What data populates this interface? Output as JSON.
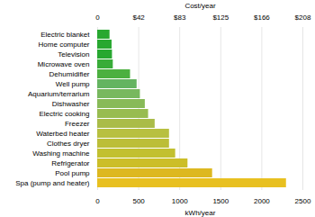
{
  "chart_data": {
    "type": "bar",
    "orientation": "horizontal",
    "categories": [
      "Spa (pump and heater)",
      "Pool pump",
      "Refrigerator",
      "Washing machine",
      "Clothes dryer",
      "Waterbed heater",
      "Freezer",
      "Electric cooking",
      "Dishwasher",
      "Aquarium/terrarium",
      "Well pump",
      "Dehumidifier",
      "Microwave oven",
      "Television",
      "Home computer",
      "Electric blanket"
    ],
    "values": [
      2300,
      1400,
      1100,
      950,
      875,
      875,
      700,
      620,
      580,
      520,
      480,
      400,
      190,
      180,
      175,
      150
    ],
    "colors": [
      "#E8C020",
      "#DDB820",
      "#CCBE28",
      "#C2C030",
      "#BCBE38",
      "#B8C040",
      "#AABC48",
      "#98BC50",
      "#88BA58",
      "#78B85E",
      "#64B460",
      "#4CB040",
      "#38AC38",
      "#28A830",
      "#28A830",
      "#28A830"
    ],
    "xlabel": "kWh/year",
    "xlim": [
      0,
      2500
    ],
    "xticks": [
      0,
      500,
      1000,
      1500,
      2000,
      2500
    ],
    "x2label": "Cost/year",
    "x2lim": [
      0,
      2500
    ],
    "x2ticks": [
      0,
      {
        "value": 500,
        "label": "$42"
      },
      {
        "value": 1000,
        "label": "$83"
      },
      {
        "value": 1500,
        "label": "$125"
      },
      {
        "value": 2000,
        "label": "$166"
      },
      {
        "value": 2500,
        "label": "$208"
      }
    ],
    "grid": true
  }
}
